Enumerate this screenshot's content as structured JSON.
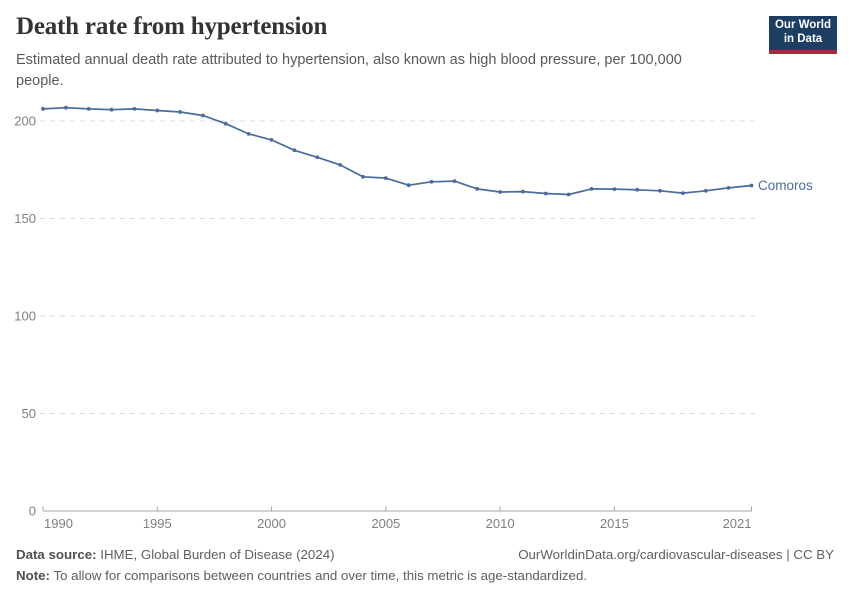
{
  "header": {
    "title": "Death rate from hypertension",
    "subtitle": "Estimated annual death rate attributed to hypertension, also known as high blood pressure, per 100,000 people.",
    "logo": {
      "line1": "Our World",
      "line2": "in Data",
      "bg_color": "#1d3d63",
      "accent_color": "#a82b39"
    }
  },
  "chart_data": {
    "type": "line",
    "title": "Death rate from hypertension",
    "xlabel": "",
    "ylabel": "",
    "xlim": [
      1990,
      2021
    ],
    "ylim": [
      0,
      200
    ],
    "grid": "horizontal-dashed",
    "legend_position": "end-of-line-label",
    "x_ticks": [
      1990,
      1995,
      2000,
      2005,
      2010,
      2015,
      2021
    ],
    "y_ticks": [
      0,
      50,
      100,
      150,
      200
    ],
    "x": [
      1990,
      1991,
      1992,
      1993,
      1994,
      1995,
      1996,
      1997,
      1998,
      1999,
      2000,
      2001,
      2002,
      2003,
      2004,
      2005,
      2006,
      2007,
      2008,
      2009,
      2010,
      2011,
      2012,
      2013,
      2014,
      2015,
      2016,
      2017,
      2018,
      2019,
      2020,
      2021
    ],
    "series": [
      {
        "name": "Comoros",
        "color": "#4C6A9C",
        "values": [
          206.2,
          206.8,
          206.2,
          205.8,
          206.2,
          205.4,
          204.6,
          202.8,
          198.6,
          193.4,
          190.3,
          185.0,
          181.4,
          177.5,
          171.4,
          170.7,
          167.1,
          168.8,
          169.2,
          165.2,
          163.6,
          163.8,
          162.8,
          162.3,
          165.2,
          165.1,
          164.7,
          164.2,
          163.0,
          164.2,
          165.7,
          166.9
        ]
      }
    ],
    "axis_label_color": "#7f7f7f",
    "gridline_color": "#dadada",
    "axis_line_color": "#a5a5a5"
  },
  "footer": {
    "datasource_label": "Data source:",
    "datasource_text": " IHME, Global Burden of Disease (2024)",
    "note_label": "Note:",
    "note_text": " To allow for comparisons between countries and over time, this metric is age-standardized.",
    "link_text": "OurWorldinData.org/cardiovascular-diseases | CC BY"
  }
}
